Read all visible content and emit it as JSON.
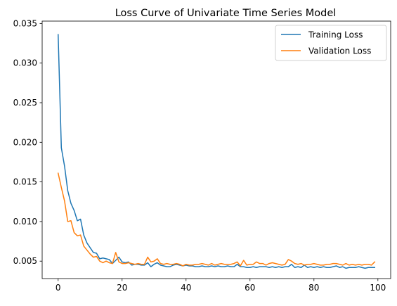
{
  "chart_data": {
    "type": "line",
    "title": "Loss Curve of Univariate Time Series Model",
    "xlabel": "",
    "ylabel": "",
    "xlim": [
      -5,
      104
    ],
    "ylim": [
      0.0028,
      0.0353
    ],
    "xticks": [
      0,
      20,
      40,
      60,
      80,
      100
    ],
    "yticks": [
      0.005,
      0.01,
      0.015,
      0.02,
      0.025,
      0.03,
      0.035
    ],
    "ytick_labels": [
      "0.005",
      "0.010",
      "0.015",
      "0.020",
      "0.025",
      "0.030",
      "0.035"
    ],
    "grid": false,
    "legend_position": "top-right",
    "series": [
      {
        "name": "Training Loss",
        "color": "#1f77b4",
        "values": [
          0.0336,
          0.0193,
          0.017,
          0.0139,
          0.0123,
          0.0114,
          0.0101,
          0.0103,
          0.0083,
          0.0073,
          0.0067,
          0.0061,
          0.006,
          0.0053,
          0.0054,
          0.0053,
          0.0052,
          0.0047,
          0.0051,
          0.0055,
          0.0049,
          0.0048,
          0.0049,
          0.0045,
          0.0046,
          0.0046,
          0.0045,
          0.0045,
          0.0048,
          0.0043,
          0.0046,
          0.0048,
          0.0045,
          0.0044,
          0.0043,
          0.0043,
          0.0045,
          0.0046,
          0.0045,
          0.0044,
          0.0045,
          0.0044,
          0.0044,
          0.0043,
          0.0043,
          0.0044,
          0.0043,
          0.0043,
          0.0044,
          0.0043,
          0.0044,
          0.0043,
          0.0043,
          0.0044,
          0.0043,
          0.0043,
          0.0046,
          0.0043,
          0.0043,
          0.0042,
          0.0042,
          0.0043,
          0.0042,
          0.0043,
          0.0043,
          0.0043,
          0.0042,
          0.0043,
          0.0042,
          0.0043,
          0.0042,
          0.0043,
          0.0043,
          0.0046,
          0.0042,
          0.0043,
          0.0042,
          0.0045,
          0.0042,
          0.0043,
          0.0042,
          0.0043,
          0.0042,
          0.0043,
          0.0042,
          0.0042,
          0.0043,
          0.0044,
          0.0042,
          0.0043,
          0.0041,
          0.0042,
          0.0042,
          0.0042,
          0.0043,
          0.0042,
          0.0041,
          0.0042,
          0.0042,
          0.0042
        ]
      },
      {
        "name": "Validation Loss",
        "color": "#ff7f0e",
        "values": [
          0.0161,
          0.0143,
          0.0126,
          0.01,
          0.0101,
          0.0086,
          0.0082,
          0.0083,
          0.0069,
          0.0064,
          0.0059,
          0.0055,
          0.0056,
          0.005,
          0.0048,
          0.005,
          0.0048,
          0.0047,
          0.0061,
          0.0049,
          0.0047,
          0.0047,
          0.0048,
          0.0047,
          0.0046,
          0.0047,
          0.0046,
          0.0046,
          0.0055,
          0.0049,
          0.005,
          0.0053,
          0.0047,
          0.0046,
          0.0047,
          0.0046,
          0.0046,
          0.0047,
          0.0046,
          0.0044,
          0.0046,
          0.0045,
          0.0045,
          0.0046,
          0.0046,
          0.0047,
          0.0046,
          0.0045,
          0.0047,
          0.0045,
          0.0046,
          0.0047,
          0.0046,
          0.0046,
          0.0046,
          0.0047,
          0.0049,
          0.0044,
          0.0051,
          0.0045,
          0.0046,
          0.0046,
          0.0049,
          0.0047,
          0.0047,
          0.0045,
          0.0047,
          0.0048,
          0.0047,
          0.0046,
          0.0045,
          0.0046,
          0.0052,
          0.005,
          0.0047,
          0.0046,
          0.0047,
          0.0045,
          0.0046,
          0.0046,
          0.0047,
          0.0046,
          0.0045,
          0.0045,
          0.0046,
          0.0046,
          0.0047,
          0.0047,
          0.0046,
          0.0045,
          0.0047,
          0.0045,
          0.0046,
          0.0045,
          0.0046,
          0.0045,
          0.0046,
          0.0046,
          0.0045,
          0.0049
        ]
      }
    ]
  }
}
